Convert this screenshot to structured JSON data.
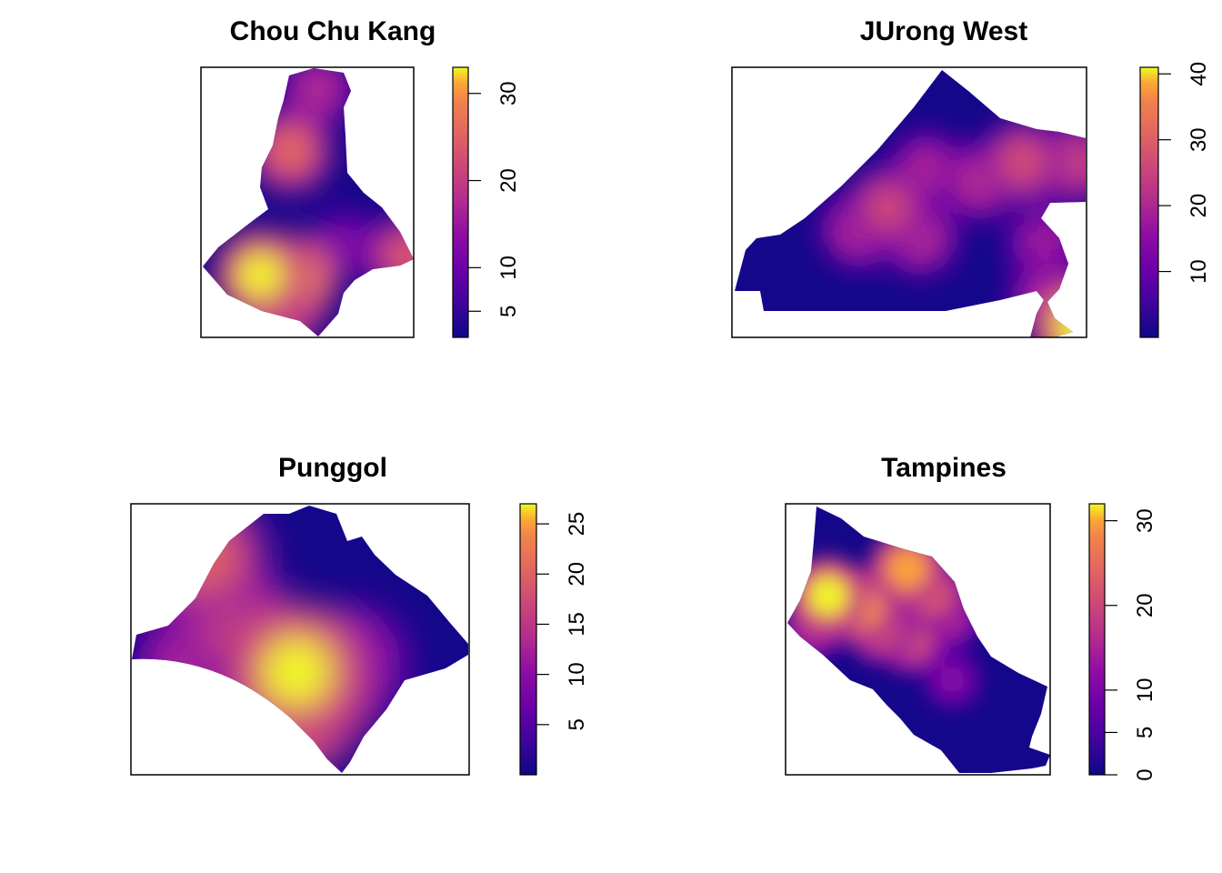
{
  "chart_data": [
    {
      "type": "heatmap",
      "title": "Chou Chu Kang",
      "legend_ticks": [
        5,
        10,
        20,
        30
      ],
      "legend_range": [
        2,
        33
      ],
      "legend_placement": "right",
      "colormap": "plasma",
      "hotspots": [
        {
          "x": 0.28,
          "y": 0.77,
          "value": 33
        },
        {
          "x": 0.44,
          "y": 0.78,
          "value": 31
        },
        {
          "x": 0.38,
          "y": 0.87,
          "value": 30
        },
        {
          "x": 0.42,
          "y": 0.31,
          "value": 26
        },
        {
          "x": 0.55,
          "y": 0.08,
          "value": 18
        },
        {
          "x": 0.97,
          "y": 0.7,
          "value": 24
        },
        {
          "x": 0.68,
          "y": 0.65,
          "value": 12
        }
      ]
    },
    {
      "type": "heatmap",
      "title": "JUrong West",
      "legend_ticks": [
        10,
        20,
        30,
        40
      ],
      "legend_range": [
        0,
        41
      ],
      "legend_placement": "right",
      "colormap": "plasma",
      "hotspots": [
        {
          "x": 0.44,
          "y": 0.52,
          "value": 26
        },
        {
          "x": 0.36,
          "y": 0.6,
          "value": 22
        },
        {
          "x": 0.53,
          "y": 0.63,
          "value": 21
        },
        {
          "x": 0.55,
          "y": 0.38,
          "value": 20
        },
        {
          "x": 0.82,
          "y": 0.35,
          "value": 27
        },
        {
          "x": 0.7,
          "y": 0.42,
          "value": 22
        },
        {
          "x": 0.97,
          "y": 0.35,
          "value": 25
        },
        {
          "x": 0.88,
          "y": 0.65,
          "value": 18
        },
        {
          "x": 0.89,
          "y": 0.85,
          "value": 20
        },
        {
          "x": 0.98,
          "y": 0.96,
          "value": 41
        }
      ]
    },
    {
      "type": "heatmap",
      "title": "Punggol",
      "legend_ticks": [
        5,
        10,
        15,
        20,
        25
      ],
      "legend_range": [
        0,
        27
      ],
      "legend_placement": "right",
      "colormap": "plasma",
      "hotspots": [
        {
          "x": 0.49,
          "y": 0.62,
          "value": 27
        },
        {
          "x": 0.49,
          "y": 0.75,
          "value": 25
        },
        {
          "x": 0.59,
          "y": 0.66,
          "value": 17
        },
        {
          "x": 0.3,
          "y": 0.43,
          "value": 17
        },
        {
          "x": 0.22,
          "y": 0.2,
          "value": 20
        },
        {
          "x": 0.18,
          "y": 0.58,
          "value": 14
        },
        {
          "x": 0.65,
          "y": 0.58,
          "value": 14
        }
      ]
    },
    {
      "type": "heatmap",
      "title": "Tampines",
      "legend_ticks": [
        0,
        5,
        10,
        20,
        30
      ],
      "legend_range": [
        0,
        32
      ],
      "legend_placement": "right",
      "colormap": "plasma",
      "hotspots": [
        {
          "x": 0.16,
          "y": 0.34,
          "value": 32
        },
        {
          "x": 0.29,
          "y": 0.38,
          "value": 29
        },
        {
          "x": 0.46,
          "y": 0.24,
          "value": 30
        },
        {
          "x": 0.55,
          "y": 0.33,
          "value": 24
        },
        {
          "x": 0.36,
          "y": 0.46,
          "value": 23
        },
        {
          "x": 0.47,
          "y": 0.5,
          "value": 22
        },
        {
          "x": 0.11,
          "y": 0.45,
          "value": 18
        },
        {
          "x": 0.62,
          "y": 0.42,
          "value": 16
        },
        {
          "x": 0.63,
          "y": 0.65,
          "value": 11
        }
      ]
    }
  ]
}
